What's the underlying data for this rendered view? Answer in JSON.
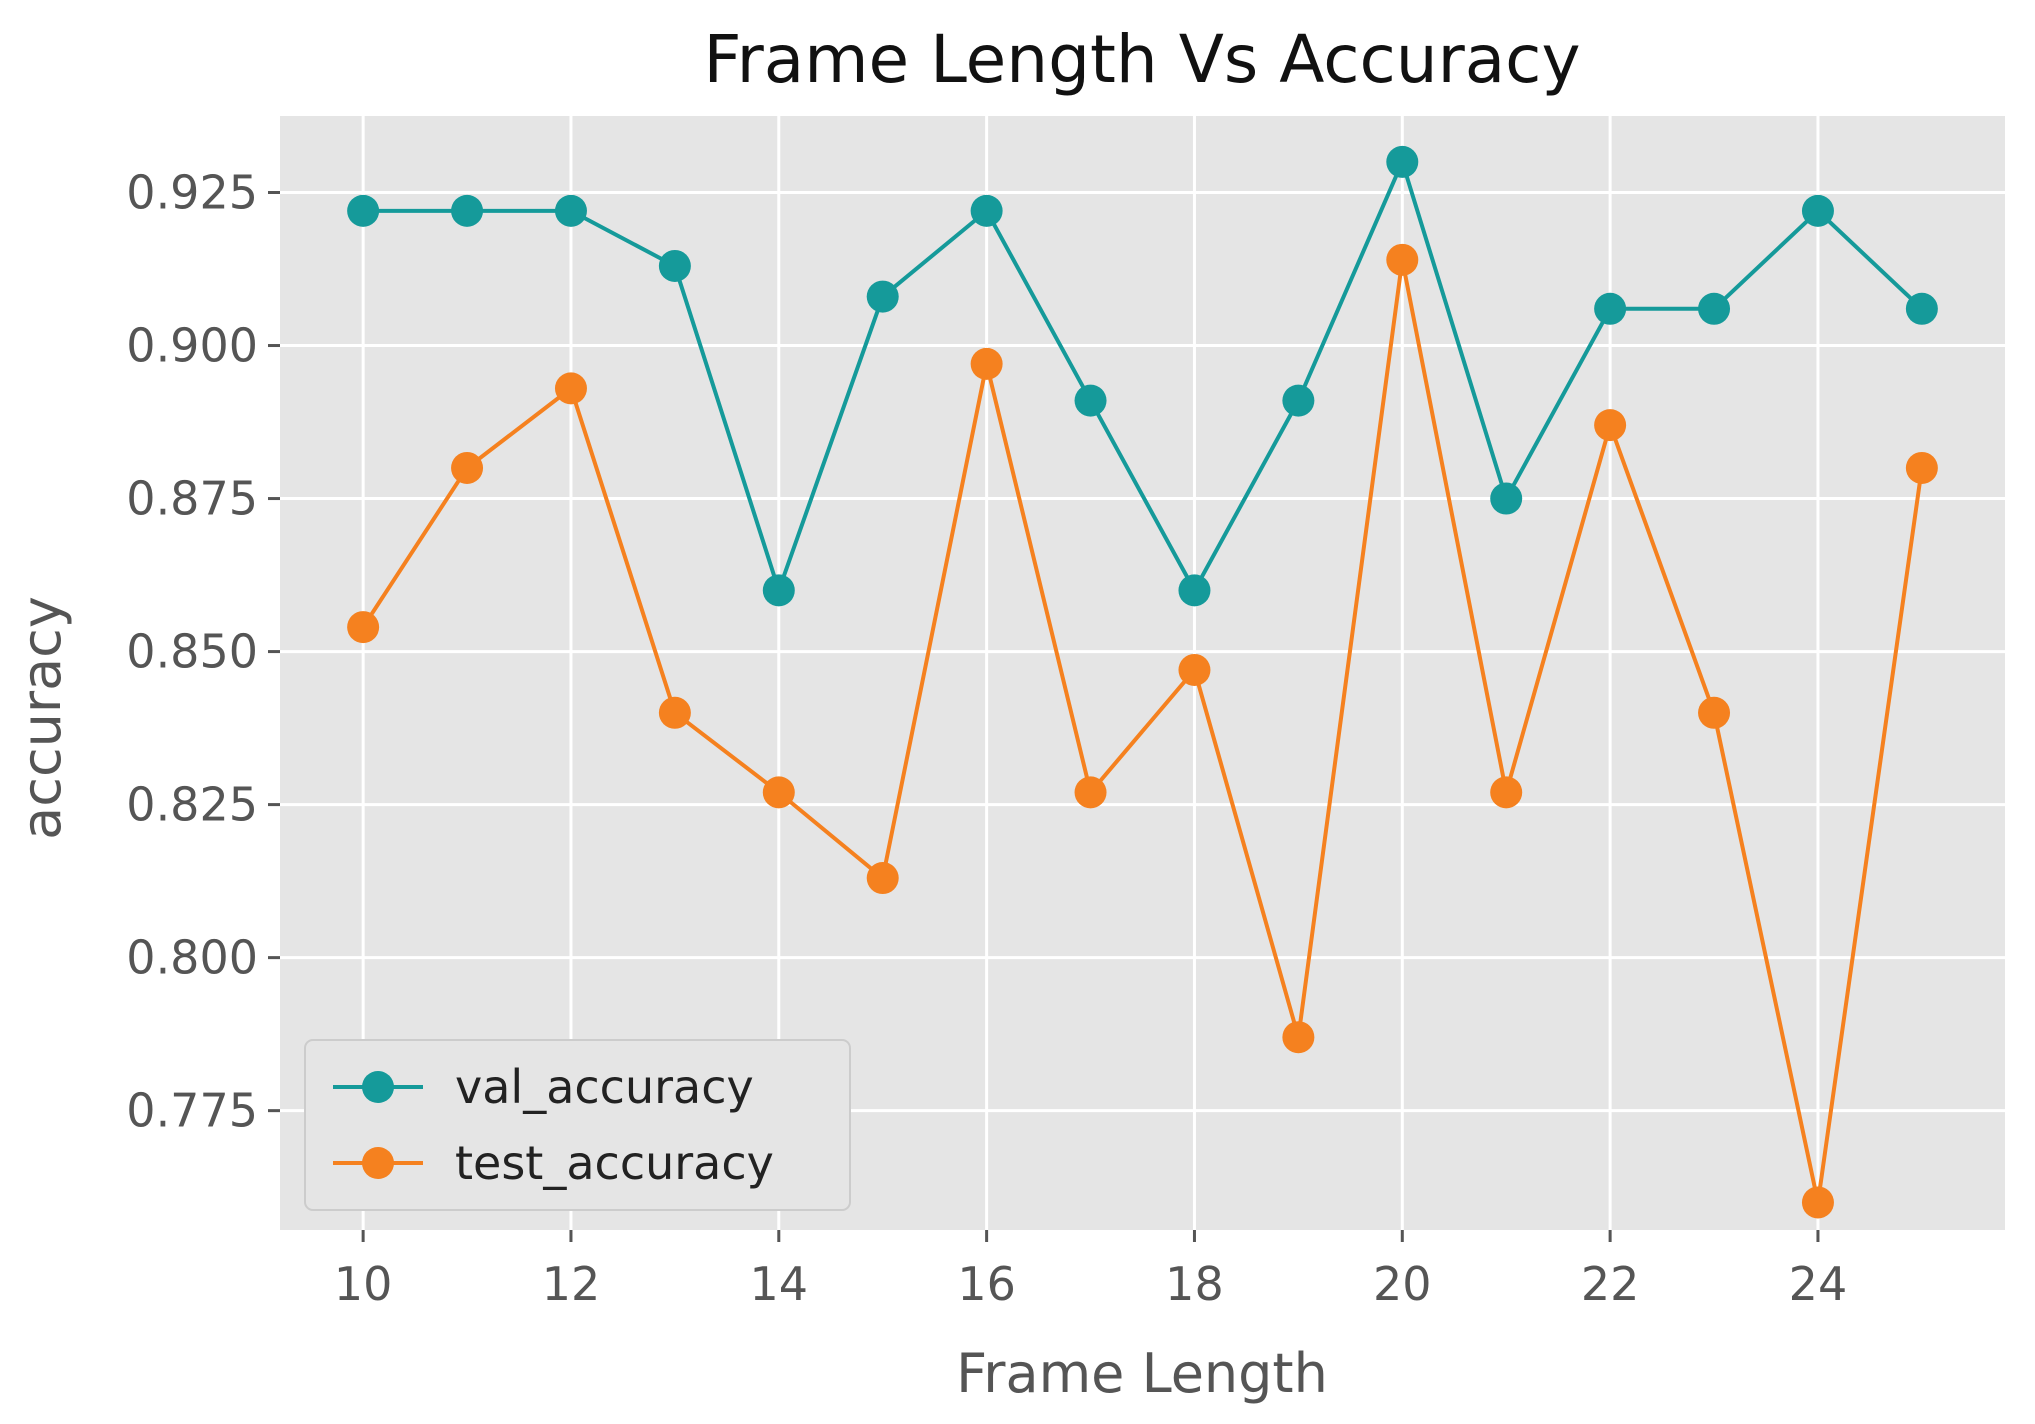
{
  "chart_data": {
    "type": "line",
    "title": "Frame Length Vs Accuracy",
    "xlabel": "Frame Length",
    "ylabel": "accuracy",
    "x": [
      10,
      11,
      12,
      13,
      14,
      15,
      16,
      17,
      18,
      19,
      20,
      21,
      22,
      23,
      24,
      25
    ],
    "x_ticks": [
      10,
      12,
      14,
      16,
      18,
      20,
      22,
      24
    ],
    "y_ticks": [
      0.775,
      0.8,
      0.825,
      0.85,
      0.875,
      0.9,
      0.925
    ],
    "y_tick_labels": [
      "0.775",
      "0.800",
      "0.825",
      "0.850",
      "0.875",
      "0.900",
      "0.925"
    ],
    "xlim": [
      9.2,
      25.8
    ],
    "ylim": [
      0.7555,
      0.9375
    ],
    "grid": true,
    "legend_position": "lower-left",
    "series": [
      {
        "name": "val_accuracy",
        "color": "#159a9a",
        "values": [
          0.922,
          0.922,
          0.922,
          0.913,
          0.86,
          0.908,
          0.922,
          0.891,
          0.86,
          0.891,
          0.93,
          0.875,
          0.906,
          0.906,
          0.922,
          0.906
        ]
      },
      {
        "name": "test_accuracy",
        "color": "#f5811f",
        "values": [
          0.854,
          0.88,
          0.893,
          0.84,
          0.827,
          0.813,
          0.897,
          0.827,
          0.847,
          0.787,
          0.914,
          0.827,
          0.887,
          0.84,
          0.76,
          0.88
        ]
      }
    ],
    "plot_background": "#e5e5e5",
    "grid_color": "#ffffff"
  }
}
